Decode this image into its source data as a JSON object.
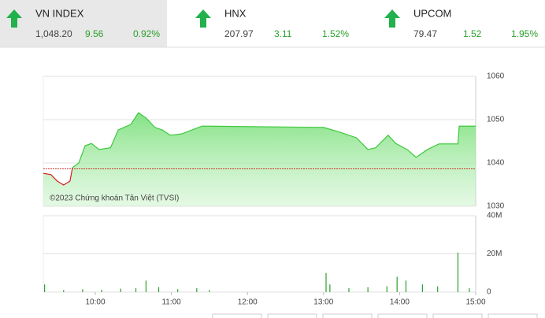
{
  "indices": [
    {
      "name": "VN INDEX",
      "value": "1,048.20",
      "change": "9.56",
      "percent": "0.92%"
    },
    {
      "name": "HNX",
      "value": "207.97",
      "change": "3.11",
      "percent": "1.52%"
    },
    {
      "name": "UPCOM",
      "value": "79.47",
      "change": "1.52",
      "percent": "1.95%"
    }
  ],
  "chart_data": [
    {
      "type": "area",
      "annotation": "©2023 Chứng khoán Tân Việt (TVSI)",
      "reference": 1038.64,
      "color": "#3cc83c",
      "down_color": "#d62020",
      "x": [
        559,
        565,
        570,
        575,
        580,
        582,
        587,
        592,
        597,
        603,
        612,
        618,
        628,
        634,
        640,
        647,
        653,
        659,
        668,
        684,
        690,
        780,
        793,
        806,
        815,
        821,
        831,
        837,
        846,
        853,
        862,
        871,
        886,
        887,
        900
      ],
      "values": [
        1037.6,
        1037.3,
        1035.8,
        1034.9,
        1035.8,
        1038.9,
        1040,
        1044,
        1044.5,
        1043.1,
        1043.5,
        1047.6,
        1048.9,
        1051.6,
        1050.4,
        1048.2,
        1047.6,
        1046.4,
        1046.7,
        1048.5,
        1048.5,
        1048.2,
        1047.1,
        1045.8,
        1043.1,
        1043.5,
        1046.4,
        1044.5,
        1043.1,
        1041.3,
        1043.1,
        1044.4,
        1044.4,
        1048.5,
        1048.5
      ],
      "xlim": [
        559,
        900
      ],
      "ylim": [
        1030,
        1060
      ],
      "yticks": [
        1030,
        1040,
        1050,
        1060
      ],
      "grid": true
    },
    {
      "type": "bar",
      "color": "#2ca02c",
      "x": [
        560,
        575,
        590,
        605,
        620,
        632,
        640,
        650,
        665,
        680,
        690,
        782,
        785,
        800,
        815,
        830,
        838,
        845,
        858,
        870,
        886,
        895
      ],
      "values": [
        4,
        1,
        1.5,
        1.2,
        1.8,
        2,
        6,
        2.5,
        1.5,
        2,
        1,
        10,
        4,
        2,
        2.5,
        3,
        8,
        6,
        4,
        3,
        20.6,
        2
      ],
      "xlim": [
        559,
        900
      ],
      "ylim": [
        0,
        40
      ],
      "yticks": [
        0,
        {
          "value": 20,
          "label": "20M"
        },
        {
          "value": 40,
          "label": "40M"
        }
      ],
      "xticks": [
        {
          "value": 600,
          "label": "10:00"
        },
        {
          "value": 660,
          "label": "11:00"
        },
        {
          "value": 720,
          "label": "12:00"
        },
        {
          "value": 780,
          "label": "13:00"
        },
        {
          "value": 840,
          "label": "14:00"
        },
        {
          "value": 900,
          "label": "15:00"
        }
      ],
      "grid": true
    }
  ]
}
